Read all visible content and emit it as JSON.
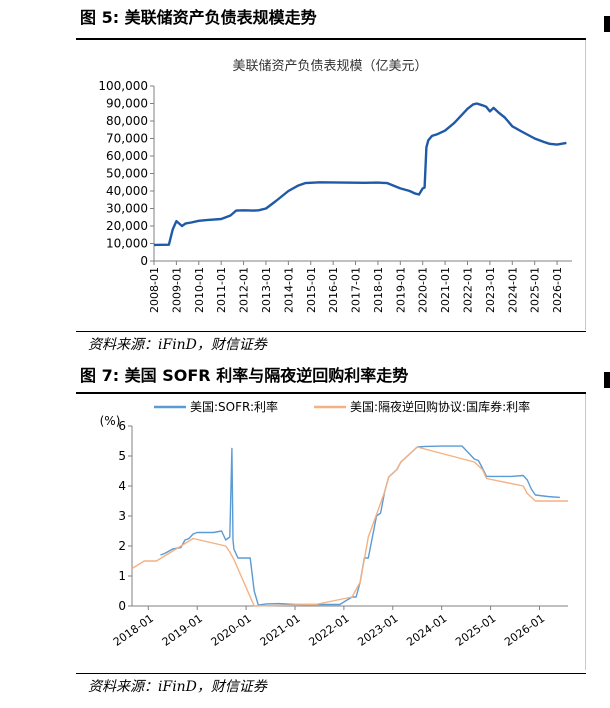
{
  "figure5": {
    "label": "图 5:  美联储资产负债表规模走势",
    "source": "资料来源：iFinD，财信证券"
  },
  "figure7": {
    "label": "图 7:  美国 SOFR 利率与隔夜逆回购利率走势",
    "source": "资料来源：iFinD，财信证券"
  },
  "chart_data": [
    {
      "type": "line",
      "title": "美联储资产负债表规模（亿美元）",
      "xlabel": "",
      "ylabel": "",
      "ylim": [
        0,
        100000
      ],
      "yticks": [
        0,
        10000,
        20000,
        30000,
        40000,
        50000,
        60000,
        70000,
        80000,
        90000,
        100000
      ],
      "ytick_labels": [
        "0",
        "10,000",
        "20,000",
        "30,000",
        "40,000",
        "50,000",
        "60,000",
        "70,000",
        "80,000",
        "90,000",
        "100,000"
      ],
      "xtick_labels": [
        "2008-01",
        "2009-01",
        "2010-01",
        "2011-01",
        "2012-01",
        "2013-01",
        "2014-01",
        "2015-01",
        "2016-01",
        "2017-01",
        "2018-01",
        "2019-01",
        "2020-01",
        "2021-01",
        "2022-01",
        "2023-01",
        "2024-01",
        "2025-01",
        "2026-01"
      ],
      "xlim": [
        "2008-01",
        "2026-09"
      ],
      "grid": false,
      "color": "#1f5aa6",
      "series": [
        {
          "name": "",
          "x": [
            "2008-01",
            "2008-09",
            "2008-11",
            "2009-01",
            "2009-04",
            "2009-06",
            "2009-09",
            "2010-01",
            "2010-06",
            "2011-01",
            "2011-06",
            "2011-09",
            "2012-01",
            "2012-06",
            "2012-09",
            "2013-01",
            "2013-06",
            "2014-01",
            "2014-06",
            "2014-10",
            "2015-06",
            "2016-06",
            "2017-06",
            "2018-01",
            "2018-06",
            "2019-01",
            "2019-06",
            "2019-09",
            "2019-11",
            "2020-01",
            "2020-02",
            "2020-03",
            "2020-04",
            "2020-06",
            "2020-09",
            "2021-01",
            "2021-06",
            "2022-01",
            "2022-04",
            "2022-06",
            "2022-09",
            "2022-11",
            "2023-01",
            "2023-03",
            "2023-06",
            "2023-09",
            "2024-01",
            "2024-06",
            "2025-01",
            "2025-06",
            "2025-09",
            "2026-01",
            "2026-06"
          ],
          "y": [
            9200,
            9300,
            18000,
            22800,
            20000,
            21500,
            22000,
            23000,
            23500,
            24000,
            26000,
            28800,
            29000,
            28800,
            29000,
            30000,
            34000,
            40000,
            43000,
            44500,
            45000,
            44800,
            44700,
            44800,
            44500,
            41500,
            40000,
            38500,
            38000,
            41500,
            42000,
            65000,
            69000,
            71500,
            72500,
            74500,
            79000,
            87000,
            89500,
            90000,
            89000,
            88200,
            85500,
            87500,
            84500,
            82000,
            77000,
            74000,
            70000,
            68000,
            67000,
            66500,
            67500
          ]
        }
      ]
    },
    {
      "type": "line",
      "title": "",
      "ylabel": "(%)",
      "xlabel": "",
      "ylim": [
        0,
        6
      ],
      "yticks": [
        0,
        1,
        2,
        3,
        4,
        5,
        6
      ],
      "ytick_labels": [
        "0",
        "1",
        "2",
        "3",
        "4",
        "5",
        "6"
      ],
      "xtick_labels": [
        "2018-01",
        "2019-01",
        "2020-01",
        "2021-01",
        "2022-01",
        "2023-01",
        "2024-01",
        "2025-01",
        "2026-01"
      ],
      "xlim": [
        "2017-09",
        "2026-08"
      ],
      "grid": false,
      "legend": "top",
      "series": [
        {
          "name": "美国:SOFR:利率",
          "color": "#5b9bd5",
          "x": [
            "2018-04",
            "2018-05",
            "2018-07",
            "2018-09",
            "2018-10",
            "2018-11",
            "2018-12",
            "2019-01",
            "2019-03",
            "2019-05",
            "2019-07",
            "2019-08",
            "2019-09",
            "2019-09-17",
            "2019-09-25",
            "2019-10",
            "2019-11",
            "2020-01",
            "2020-02",
            "2020-03",
            "2020-04",
            "2020-06",
            "2020-09",
            "2021-01",
            "2021-06",
            "2021-12",
            "2022-03",
            "2022-04",
            "2022-05",
            "2022-06",
            "2022-07",
            "2022-08",
            "2022-09",
            "2022-10",
            "2022-11",
            "2022-12",
            "2023-02",
            "2023-03",
            "2023-05",
            "2023-07",
            "2023-09",
            "2024-01",
            "2024-06",
            "2024-09",
            "2024-10",
            "2024-11",
            "2024-12",
            "2025-06",
            "2025-09",
            "2025-10",
            "2025-11",
            "2025-12",
            "2026-03",
            "2026-06"
          ],
          "y": [
            1.7,
            1.75,
            1.9,
            1.95,
            2.2,
            2.25,
            2.4,
            2.45,
            2.45,
            2.45,
            2.5,
            2.2,
            2.3,
            5.25,
            2.2,
            1.9,
            1.6,
            1.6,
            1.6,
            0.5,
            0.03,
            0.07,
            0.08,
            0.05,
            0.05,
            0.05,
            0.3,
            0.3,
            0.8,
            1.6,
            1.6,
            2.3,
            3.0,
            3.1,
            3.8,
            4.3,
            4.55,
            4.8,
            5.05,
            5.3,
            5.32,
            5.33,
            5.33,
            4.9,
            4.85,
            4.6,
            4.32,
            4.32,
            4.35,
            4.2,
            3.9,
            3.7,
            3.65,
            3.62
          ]
        },
        {
          "name": "美国:隔夜逆回购协议:国库券:利率",
          "color": "#f4b183",
          "x": [
            "2017-09",
            "2017-12",
            "2018-03",
            "2018-06",
            "2018-09",
            "2018-12",
            "2019-08",
            "2019-09",
            "2019-10",
            "2020-03",
            "2021-06",
            "2022-03",
            "2022-05",
            "2022-06",
            "2022-07",
            "2022-09",
            "2022-11",
            "2022-12",
            "2023-02",
            "2023-03",
            "2023-05",
            "2023-07",
            "2024-09",
            "2024-11",
            "2024-12",
            "2025-09",
            "2025-10",
            "2025-12",
            "2026-08"
          ],
          "y": [
            1.25,
            1.5,
            1.5,
            1.75,
            2.0,
            2.25,
            2.0,
            1.8,
            1.55,
            0.0,
            0.05,
            0.3,
            0.8,
            1.55,
            2.3,
            3.05,
            3.8,
            4.3,
            4.55,
            4.8,
            5.05,
            5.3,
            4.8,
            4.55,
            4.25,
            4.0,
            3.75,
            3.5,
            3.5
          ]
        }
      ]
    }
  ]
}
